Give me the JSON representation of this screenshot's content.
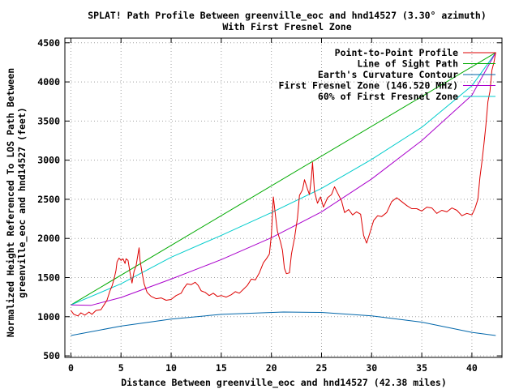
{
  "chart_data": {
    "type": "line",
    "title": "SPLAT! Path Profile Between greenville_eoc and hnd14527 (3.30° azimuth)",
    "subtitle": "With First Fresnel Zone",
    "xlabel": "Distance Between greenville_eoc and hnd14527 (42.38 miles)",
    "ylabel": [
      "Normalized Height Referenced To LOS Path Between",
      "greenville_eoc and hnd14527 (feet)"
    ],
    "xlim": [
      -0.6,
      43
    ],
    "ylim": [
      480,
      4560
    ],
    "xticks": [
      0,
      5,
      10,
      15,
      20,
      25,
      30,
      35,
      40
    ],
    "yticks": [
      500,
      1000,
      1500,
      2000,
      2500,
      3000,
      3500,
      4000,
      4500
    ],
    "grid": true,
    "legend_position": "top-right",
    "series": [
      {
        "name": "Point-to-Point Profile",
        "color": "#dd0000",
        "points": [
          [
            0,
            1080
          ],
          [
            0.3,
            1030
          ],
          [
            0.7,
            1010
          ],
          [
            1.0,
            1050
          ],
          [
            1.4,
            1020
          ],
          [
            1.8,
            1060
          ],
          [
            2.1,
            1030
          ],
          [
            2.5,
            1080
          ],
          [
            3.0,
            1090
          ],
          [
            3.3,
            1150
          ],
          [
            3.6,
            1210
          ],
          [
            3.9,
            1330
          ],
          [
            4.1,
            1390
          ],
          [
            4.3,
            1480
          ],
          [
            4.5,
            1590
          ],
          [
            4.6,
            1700
          ],
          [
            4.8,
            1750
          ],
          [
            5.0,
            1720
          ],
          [
            5.2,
            1740
          ],
          [
            5.4,
            1680
          ],
          [
            5.5,
            1740
          ],
          [
            5.7,
            1720
          ],
          [
            5.9,
            1560
          ],
          [
            6.1,
            1430
          ],
          [
            6.3,
            1580
          ],
          [
            6.5,
            1650
          ],
          [
            6.7,
            1800
          ],
          [
            6.8,
            1880
          ],
          [
            6.9,
            1720
          ],
          [
            7.1,
            1560
          ],
          [
            7.3,
            1420
          ],
          [
            7.6,
            1310
          ],
          [
            8.0,
            1260
          ],
          [
            8.5,
            1230
          ],
          [
            9.0,
            1240
          ],
          [
            9.5,
            1210
          ],
          [
            10.0,
            1220
          ],
          [
            10.5,
            1270
          ],
          [
            11.0,
            1300
          ],
          [
            11.3,
            1370
          ],
          [
            11.6,
            1420
          ],
          [
            12.0,
            1410
          ],
          [
            12.4,
            1440
          ],
          [
            12.7,
            1400
          ],
          [
            13.0,
            1330
          ],
          [
            13.4,
            1310
          ],
          [
            13.8,
            1270
          ],
          [
            14.2,
            1300
          ],
          [
            14.6,
            1260
          ],
          [
            15.0,
            1270
          ],
          [
            15.5,
            1250
          ],
          [
            16.0,
            1280
          ],
          [
            16.4,
            1320
          ],
          [
            16.8,
            1300
          ],
          [
            17.2,
            1350
          ],
          [
            17.6,
            1400
          ],
          [
            18.0,
            1480
          ],
          [
            18.4,
            1470
          ],
          [
            18.8,
            1560
          ],
          [
            19.2,
            1690
          ],
          [
            19.5,
            1740
          ],
          [
            19.8,
            1800
          ],
          [
            20.0,
            2050
          ],
          [
            20.1,
            2300
          ],
          [
            20.2,
            2530
          ],
          [
            20.4,
            2300
          ],
          [
            20.6,
            2090
          ],
          [
            20.9,
            1960
          ],
          [
            21.1,
            1850
          ],
          [
            21.3,
            1620
          ],
          [
            21.5,
            1550
          ],
          [
            21.8,
            1560
          ],
          [
            22.0,
            1800
          ],
          [
            22.3,
            2000
          ],
          [
            22.6,
            2260
          ],
          [
            22.8,
            2550
          ],
          [
            23.1,
            2620
          ],
          [
            23.3,
            2750
          ],
          [
            23.6,
            2630
          ],
          [
            23.8,
            2560
          ],
          [
            24.0,
            2790
          ],
          [
            24.1,
            2970
          ],
          [
            24.3,
            2600
          ],
          [
            24.6,
            2450
          ],
          [
            24.9,
            2530
          ],
          [
            25.2,
            2400
          ],
          [
            25.6,
            2520
          ],
          [
            26.0,
            2560
          ],
          [
            26.3,
            2660
          ],
          [
            26.6,
            2580
          ],
          [
            27.0,
            2480
          ],
          [
            27.3,
            2330
          ],
          [
            27.7,
            2370
          ],
          [
            28.1,
            2300
          ],
          [
            28.5,
            2340
          ],
          [
            28.9,
            2310
          ],
          [
            29.2,
            2040
          ],
          [
            29.5,
            1940
          ],
          [
            29.8,
            2060
          ],
          [
            30.2,
            2230
          ],
          [
            30.6,
            2290
          ],
          [
            31.0,
            2280
          ],
          [
            31.5,
            2330
          ],
          [
            32.0,
            2470
          ],
          [
            32.5,
            2520
          ],
          [
            33.0,
            2470
          ],
          [
            33.5,
            2420
          ],
          [
            34.0,
            2380
          ],
          [
            34.5,
            2380
          ],
          [
            35.0,
            2350
          ],
          [
            35.5,
            2400
          ],
          [
            36.0,
            2390
          ],
          [
            36.5,
            2320
          ],
          [
            37.0,
            2360
          ],
          [
            37.5,
            2340
          ],
          [
            38.0,
            2390
          ],
          [
            38.5,
            2360
          ],
          [
            39.0,
            2290
          ],
          [
            39.5,
            2320
          ],
          [
            40.0,
            2300
          ],
          [
            40.3,
            2380
          ],
          [
            40.6,
            2500
          ],
          [
            40.8,
            2780
          ],
          [
            41.0,
            2980
          ],
          [
            41.2,
            3200
          ],
          [
            41.4,
            3450
          ],
          [
            41.6,
            3750
          ],
          [
            41.8,
            3880
          ],
          [
            42.0,
            4150
          ],
          [
            42.2,
            4250
          ],
          [
            42.38,
            4380
          ]
        ]
      },
      {
        "name": "Line of Sight Path",
        "color": "#00aa00",
        "points": [
          [
            0,
            1150
          ],
          [
            42.38,
            4375
          ]
        ]
      },
      {
        "name": "Earth's Curvature Contour",
        "color": "#0066aa",
        "points": [
          [
            0,
            760
          ],
          [
            5,
            880
          ],
          [
            10,
            970
          ],
          [
            15,
            1030
          ],
          [
            21.19,
            1060
          ],
          [
            25,
            1055
          ],
          [
            30,
            1010
          ],
          [
            35,
            930
          ],
          [
            40,
            800
          ],
          [
            42.38,
            760
          ]
        ]
      },
      {
        "name": "First Fresnel Zone (146.520 MHz)",
        "color": "#aa00cc",
        "points": [
          [
            0,
            1150
          ],
          [
            2,
            1145
          ],
          [
            5,
            1245
          ],
          [
            10,
            1480
          ],
          [
            15,
            1730
          ],
          [
            20,
            2010
          ],
          [
            25,
            2340
          ],
          [
            30,
            2760
          ],
          [
            35,
            3250
          ],
          [
            40,
            3830
          ],
          [
            42.38,
            4375
          ]
        ]
      },
      {
        "name": "60% of First Fresnel Zone",
        "color": "#00cccc",
        "points": [
          [
            0,
            1150
          ],
          [
            5,
            1420
          ],
          [
            10,
            1760
          ],
          [
            15,
            2040
          ],
          [
            20,
            2330
          ],
          [
            25,
            2640
          ],
          [
            30,
            3010
          ],
          [
            35,
            3420
          ],
          [
            40,
            3950
          ],
          [
            42.38,
            4375
          ]
        ]
      }
    ]
  }
}
